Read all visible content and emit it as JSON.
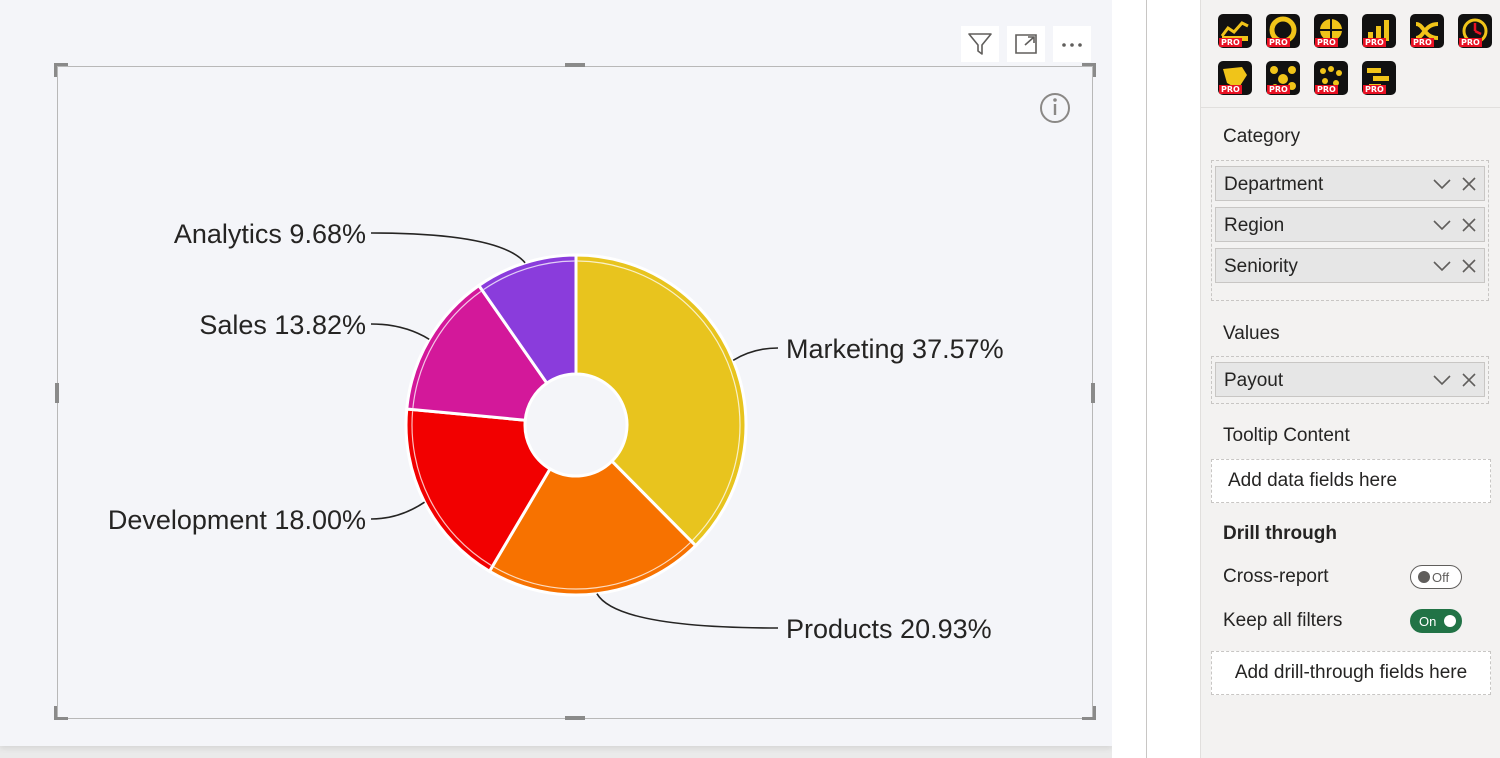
{
  "visual_header": {
    "filter_icon": "filter-icon",
    "focus_icon": "focus-mode-icon",
    "more_icon": "more-options-icon",
    "info_icon": "info-icon"
  },
  "chart_data": {
    "type": "pie",
    "donut": true,
    "start_angle_deg": 0,
    "direction": "clockwise",
    "slices": [
      {
        "label": "Marketing",
        "value": 37.57,
        "display": "Marketing 37.57%",
        "color": "#e8c41e"
      },
      {
        "label": "Products",
        "value": 20.93,
        "display": "Products 20.93%",
        "color": "#f77200"
      },
      {
        "label": "Development",
        "value": 18.0,
        "display": "Development 18.00%",
        "color": "#f20000"
      },
      {
        "label": "Sales",
        "value": 13.82,
        "display": "Sales 13.82%",
        "color": "#d3189a"
      },
      {
        "label": "Analytics",
        "value": 9.68,
        "display": "Analytics 9.68%",
        "color": "#8a3cdc"
      }
    ]
  },
  "pane": {
    "visual_icons": [
      "line-chart-pro-icon",
      "donut-pro-icon",
      "radial-pro-icon",
      "bar-pro-icon",
      "sankey-pro-icon",
      "gauge-pro-icon",
      "map-pro-icon",
      "network-pro-icon",
      "dot-plot-pro-icon",
      "gantt-pro-icon"
    ],
    "pro_badge": "PRO",
    "category": {
      "title": "Category",
      "fields": [
        "Department",
        "Region",
        "Seniority"
      ]
    },
    "values": {
      "title": "Values",
      "fields": [
        "Payout"
      ]
    },
    "tooltip": {
      "title": "Tooltip Content",
      "placeholder": "Add data fields here"
    },
    "drill": {
      "title": "Drill through",
      "cross_report": {
        "label": "Cross-report",
        "state": "Off"
      },
      "keep_filters": {
        "label": "Keep all filters",
        "state": "On"
      },
      "placeholder": "Add drill-through fields here"
    },
    "accent_color": "#217346"
  }
}
